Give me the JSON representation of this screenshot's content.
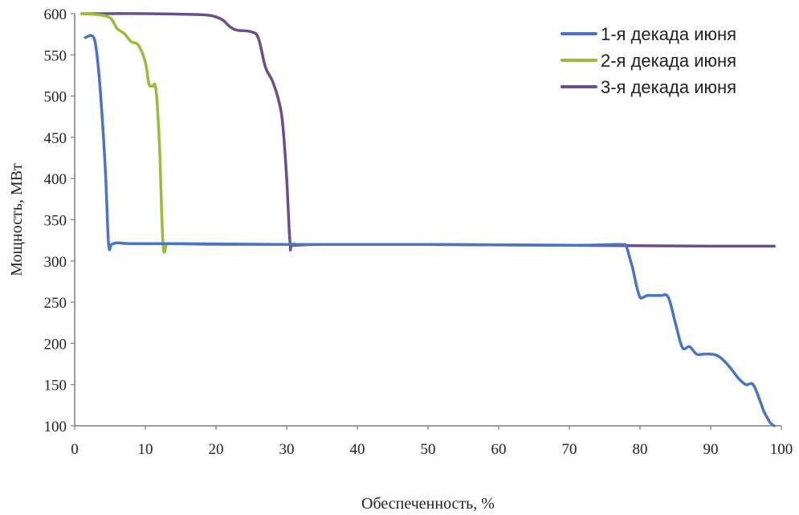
{
  "chart_data": {
    "type": "line",
    "title": "",
    "xlabel": "Обеспеченность, %",
    "ylabel": "Мощность, МВт",
    "xlim": [
      0,
      100
    ],
    "ylim": [
      100,
      600
    ],
    "x_ticks": [
      0,
      10,
      20,
      30,
      40,
      50,
      60,
      70,
      80,
      90,
      100
    ],
    "y_ticks": [
      100,
      150,
      200,
      250,
      300,
      350,
      400,
      450,
      500,
      550,
      600
    ],
    "grid": false,
    "legend_position": "top-right",
    "series": [
      {
        "name": "1-я декада июня",
        "color": "#4a74c4",
        "x": [
          1.5,
          2.5,
          3,
          3.5,
          4,
          4.4,
          4.8,
          5.2,
          6,
          8,
          15,
          30,
          50,
          70,
          77,
          78,
          78.5,
          79,
          79.5,
          80,
          80.5,
          81,
          82,
          83,
          84,
          85,
          86,
          87,
          88,
          89,
          90,
          91,
          92,
          93,
          94,
          95,
          96,
          97,
          97.5,
          98,
          98.5,
          99
        ],
        "y": [
          571,
          573,
          560,
          520,
          460,
          400,
          320,
          320,
          322,
          321,
          321,
          320,
          320,
          319,
          320,
          318,
          305,
          290,
          270,
          256,
          256,
          258,
          258,
          258,
          256,
          225,
          195,
          196,
          187,
          187,
          187,
          185,
          178,
          168,
          157,
          150,
          150,
          130,
          118,
          110,
          103,
          100
        ]
      },
      {
        "name": "2-я декада июня",
        "color": "#9bbb3c",
        "x": [
          1,
          3,
          5,
          6,
          7,
          8,
          9,
          10,
          10.5,
          11,
          11.5,
          12,
          12.5,
          13,
          13.5,
          20,
          30,
          31
        ],
        "y": [
          600,
          599,
          595,
          582,
          576,
          566,
          562,
          541,
          515,
          512,
          508,
          440,
          320,
          320,
          321,
          320,
          320,
          321
        ]
      },
      {
        "name": "3-я декада июня",
        "color": "#6a4e8e",
        "x": [
          1,
          10,
          17,
          19,
          20,
          21,
          22,
          23,
          25,
          26,
          27,
          28,
          29,
          29.5,
          30,
          30.5,
          31,
          35,
          50,
          70,
          90,
          99
        ],
        "y": [
          600,
          600,
          599,
          598,
          596,
          592,
          584,
          580,
          578,
          570,
          535,
          518,
          490,
          460,
          400,
          320,
          319,
          320,
          320,
          319,
          318,
          318
        ]
      }
    ]
  }
}
